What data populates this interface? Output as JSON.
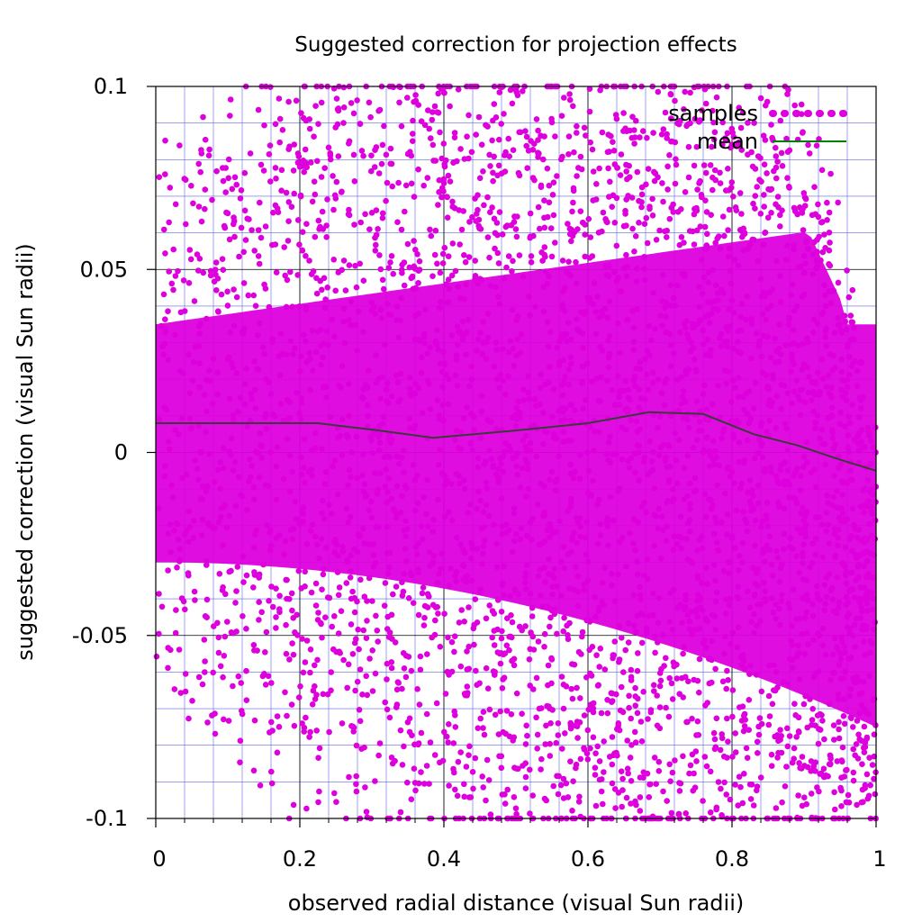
{
  "chart_data": {
    "type": "scatter",
    "title": "Suggested correction for projection effects",
    "xlabel": "observed radial distance (visual Sun radii)",
    "ylabel": "suggested correction (visual Sun radii)",
    "xlim": [
      0,
      1
    ],
    "ylim": [
      -0.1,
      0.1
    ],
    "x_ticks": [
      0,
      0.2,
      0.4,
      0.6,
      0.8,
      1
    ],
    "x_tick_labels": [
      "0",
      "0.2",
      "0.4",
      "0.6",
      "0.8",
      "1"
    ],
    "y_ticks": [
      -0.1,
      -0.05,
      0,
      0.05,
      0.1
    ],
    "y_tick_labels": [
      "-0.1",
      "-0.05",
      "0",
      "0.05",
      "0.1"
    ],
    "grid": true,
    "minor_grid": true,
    "legend_position": "top-right",
    "series": [
      {
        "name": "samples",
        "kind": "scatter",
        "color": "#dd00dd",
        "description_envelope": {
          "upper": {
            "x": [
              0,
              0.2,
              0.4,
              0.6,
              0.8,
              0.9,
              0.95,
              1.0
            ],
            "y": [
              0.08,
              0.1,
              0.1,
              0.1,
              0.1,
              0.09,
              0.06,
              0.0
            ]
          },
          "lower": {
            "x": [
              0,
              0.2,
              0.4,
              0.6,
              0.8,
              0.9,
              1.0
            ],
            "y": [
              -0.06,
              -0.09,
              -0.1,
              -0.1,
              -0.1,
              -0.1,
              -0.1
            ]
          }
        }
      },
      {
        "name": "mean",
        "kind": "line",
        "color": "#008000",
        "x": [
          0.0,
          0.1,
          0.225,
          0.31,
          0.385,
          0.5,
          0.6,
          0.685,
          0.76,
          0.83,
          0.89,
          0.95,
          1.0
        ],
        "y": [
          0.008,
          0.008,
          0.008,
          0.006,
          0.004,
          0.006,
          0.008,
          0.011,
          0.0105,
          0.005,
          0.002,
          -0.002,
          -0.005
        ]
      }
    ],
    "colors": {
      "major_grid": "#000000",
      "minor_grid": "#5555dd",
      "samples": "#dd00dd",
      "mean": "#008000"
    }
  }
}
